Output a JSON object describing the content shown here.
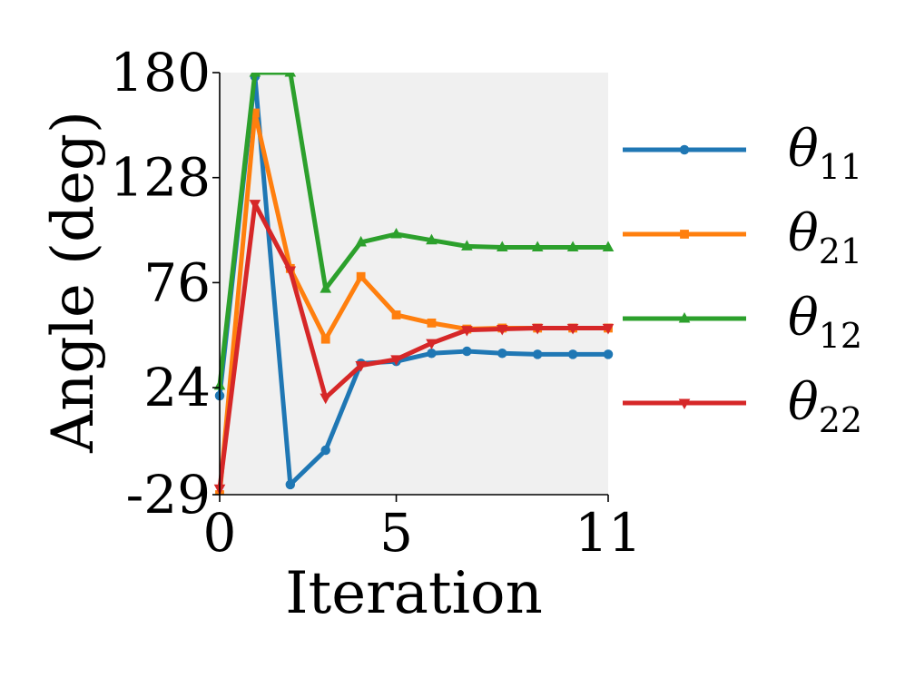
{
  "chart_data": {
    "type": "line",
    "title": "",
    "xlabel": "Iteration",
    "ylabel": "Angle (deg)",
    "xlim": [
      0,
      11
    ],
    "ylim": [
      -29,
      180
    ],
    "xticks": [
      0,
      5,
      11
    ],
    "xtick_labels": [
      "0",
      "5",
      "11"
    ],
    "yticks": [
      -29,
      24,
      76,
      128,
      180
    ],
    "ytick_labels": [
      "-29",
      "24",
      "76",
      "128",
      "180"
    ],
    "grid": false,
    "background": "#f0f0f0",
    "legend_position": "right",
    "x": [
      0,
      1,
      2,
      3,
      4,
      5,
      6,
      7,
      8,
      9,
      10,
      11
    ],
    "series": [
      {
        "name": "θ11",
        "symbol": "θ",
        "subscript": "11",
        "color": "#1f77b4",
        "marker": "circle",
        "values": [
          20,
          178,
          -24,
          -7,
          36,
          37,
          41,
          42,
          41,
          40.5,
          40.5,
          40.5
        ]
      },
      {
        "name": "θ21",
        "symbol": "θ",
        "subscript": "21",
        "color": "#ff7f0e",
        "marker": "square",
        "values": [
          -29,
          160,
          83,
          48,
          79,
          60,
          56,
          53,
          53.5,
          53.5,
          53.5,
          53.5
        ]
      },
      {
        "name": "θ12",
        "symbol": "θ",
        "subscript": "12",
        "color": "#2ca02c",
        "marker": "triangle-up",
        "values": [
          25,
          180,
          180,
          73,
          96,
          100,
          97,
          94,
          93.5,
          93.5,
          93.5,
          93.5
        ]
      },
      {
        "name": "θ22",
        "symbol": "θ",
        "subscript": "22",
        "color": "#d62728",
        "marker": "triangle-down",
        "values": [
          -26,
          115,
          82,
          19,
          35,
          38,
          46,
          52.5,
          53,
          53.5,
          53.5,
          53.5
        ]
      }
    ]
  }
}
